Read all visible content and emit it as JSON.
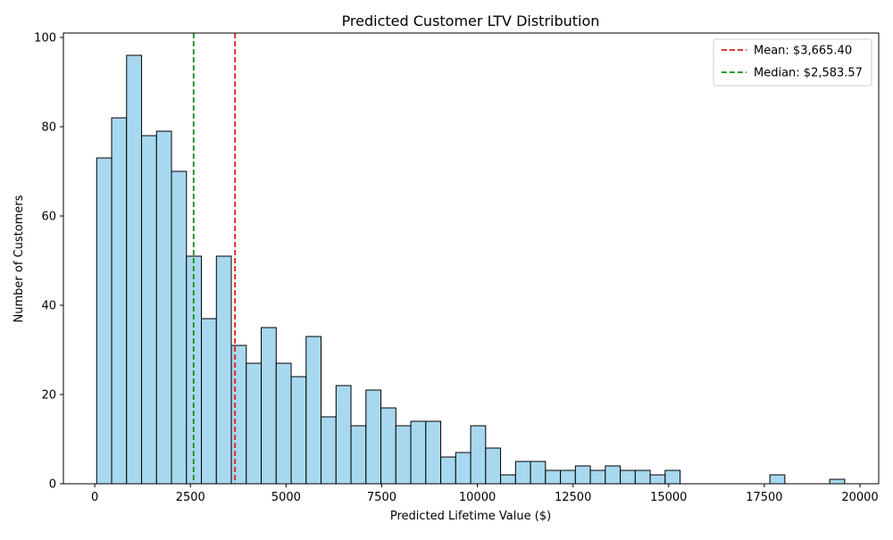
{
  "chart_data": {
    "type": "histogram",
    "title": "Predicted Customer LTV Distribution",
    "xlabel": "Predicted Lifetime Value ($)",
    "ylabel": "Number of Customers",
    "xlim": [
      -820,
      20490
    ],
    "ylim": [
      0,
      101
    ],
    "bin_start": 50,
    "bin_width": 391,
    "values": [
      73,
      82,
      96,
      78,
      79,
      70,
      51,
      37,
      51,
      31,
      27,
      35,
      27,
      24,
      33,
      15,
      22,
      13,
      21,
      17,
      13,
      14,
      14,
      6,
      7,
      13,
      8,
      2,
      5,
      5,
      3,
      3,
      4,
      3,
      4,
      3,
      3,
      2,
      3,
      0,
      0,
      0,
      0,
      0,
      0,
      2,
      0,
      0,
      0,
      1
    ],
    "x_ticks": [
      0,
      2500,
      5000,
      7500,
      10000,
      12500,
      15000,
      17500,
      20000
    ],
    "x_tick_labels": [
      "0",
      "2500",
      "5000",
      "7500",
      "10000",
      "12500",
      "15000",
      "17500",
      "20000"
    ],
    "y_ticks": [
      0,
      20,
      40,
      60,
      80,
      100
    ],
    "y_tick_labels": [
      "0",
      "20",
      "40",
      "60",
      "80",
      "100"
    ],
    "bar_color": "#a8d8ef",
    "bar_edge_color": "#000000",
    "reference_lines": [
      {
        "name": "mean",
        "value": 3665.4,
        "color": "#e31a1c",
        "label": "Mean: $3,665.40"
      },
      {
        "name": "median",
        "value": 2583.57,
        "color": "#1a8a1a",
        "label": "Median: $2,583.57"
      }
    ],
    "legend_position": "top-right",
    "grid": false
  }
}
